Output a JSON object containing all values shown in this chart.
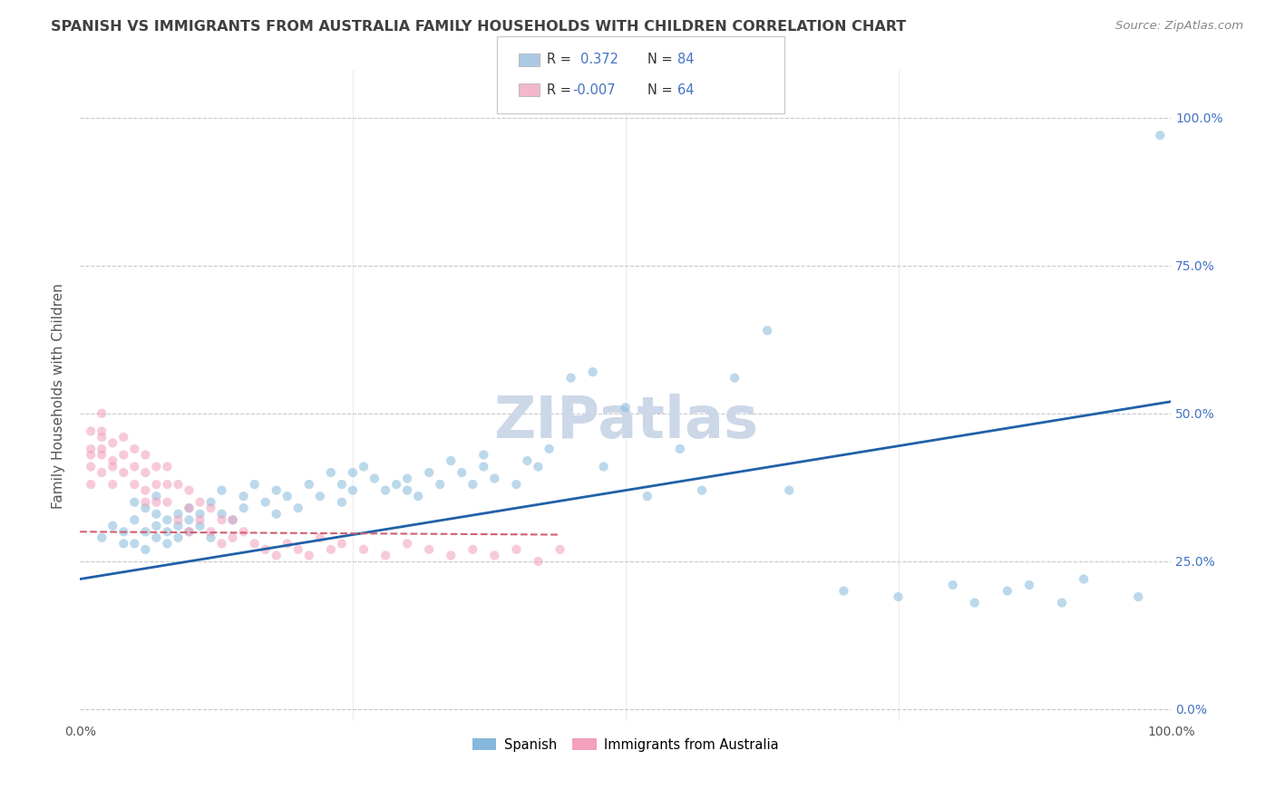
{
  "title": "SPANISH VS IMMIGRANTS FROM AUSTRALIA FAMILY HOUSEHOLDS WITH CHILDREN CORRELATION CHART",
  "source_text": "Source: ZipAtlas.com",
  "ylabel": "Family Households with Children",
  "xlim": [
    0.0,
    1.0
  ],
  "ylim": [
    -0.05,
    1.1
  ],
  "plot_ylim": [
    0.0,
    1.0
  ],
  "xtick_positions": [
    0.0,
    1.0
  ],
  "xtick_labels": [
    "0.0%",
    "100.0%"
  ],
  "ytick_positions": [
    0.0,
    0.25,
    0.5,
    0.75,
    1.0
  ],
  "ytick_labels": [
    "0.0%",
    "25.0%",
    "50.0%",
    "75.0%",
    "100.0%"
  ],
  "watermark": "ZIPatlas",
  "blue_scatter_x": [
    0.02,
    0.03,
    0.04,
    0.04,
    0.05,
    0.05,
    0.05,
    0.06,
    0.06,
    0.06,
    0.07,
    0.07,
    0.07,
    0.07,
    0.08,
    0.08,
    0.08,
    0.09,
    0.09,
    0.09,
    0.1,
    0.1,
    0.1,
    0.11,
    0.11,
    0.12,
    0.12,
    0.13,
    0.13,
    0.14,
    0.15,
    0.15,
    0.16,
    0.17,
    0.18,
    0.18,
    0.19,
    0.2,
    0.21,
    0.22,
    0.23,
    0.24,
    0.24,
    0.25,
    0.25,
    0.26,
    0.27,
    0.28,
    0.29,
    0.3,
    0.3,
    0.31,
    0.32,
    0.33,
    0.34,
    0.35,
    0.36,
    0.37,
    0.37,
    0.38,
    0.4,
    0.41,
    0.42,
    0.43,
    0.45,
    0.47,
    0.48,
    0.5,
    0.52,
    0.55,
    0.57,
    0.6,
    0.63,
    0.65,
    0.7,
    0.75,
    0.8,
    0.82,
    0.85,
    0.87,
    0.9,
    0.92,
    0.97,
    0.99
  ],
  "blue_scatter_y": [
    0.29,
    0.31,
    0.3,
    0.28,
    0.32,
    0.35,
    0.28,
    0.3,
    0.34,
    0.27,
    0.31,
    0.29,
    0.33,
    0.36,
    0.3,
    0.32,
    0.28,
    0.31,
    0.33,
    0.29,
    0.34,
    0.3,
    0.32,
    0.31,
    0.33,
    0.35,
    0.29,
    0.33,
    0.37,
    0.32,
    0.34,
    0.36,
    0.38,
    0.35,
    0.33,
    0.37,
    0.36,
    0.34,
    0.38,
    0.36,
    0.4,
    0.35,
    0.38,
    0.37,
    0.4,
    0.41,
    0.39,
    0.37,
    0.38,
    0.39,
    0.37,
    0.36,
    0.4,
    0.38,
    0.42,
    0.4,
    0.38,
    0.41,
    0.43,
    0.39,
    0.38,
    0.42,
    0.41,
    0.44,
    0.56,
    0.57,
    0.41,
    0.51,
    0.36,
    0.44,
    0.37,
    0.56,
    0.64,
    0.37,
    0.2,
    0.19,
    0.21,
    0.18,
    0.2,
    0.21,
    0.18,
    0.22,
    0.19,
    0.97
  ],
  "pink_scatter_x": [
    0.01,
    0.01,
    0.01,
    0.01,
    0.01,
    0.02,
    0.02,
    0.02,
    0.02,
    0.02,
    0.02,
    0.03,
    0.03,
    0.03,
    0.03,
    0.04,
    0.04,
    0.04,
    0.05,
    0.05,
    0.05,
    0.06,
    0.06,
    0.06,
    0.06,
    0.07,
    0.07,
    0.07,
    0.08,
    0.08,
    0.08,
    0.09,
    0.09,
    0.1,
    0.1,
    0.1,
    0.11,
    0.11,
    0.12,
    0.12,
    0.13,
    0.13,
    0.14,
    0.14,
    0.15,
    0.16,
    0.17,
    0.18,
    0.19,
    0.2,
    0.21,
    0.22,
    0.23,
    0.24,
    0.26,
    0.28,
    0.3,
    0.32,
    0.34,
    0.36,
    0.38,
    0.4,
    0.42,
    0.44
  ],
  "pink_scatter_y": [
    0.44,
    0.41,
    0.47,
    0.38,
    0.43,
    0.46,
    0.43,
    0.4,
    0.47,
    0.44,
    0.5,
    0.42,
    0.45,
    0.38,
    0.41,
    0.43,
    0.4,
    0.46,
    0.38,
    0.41,
    0.44,
    0.37,
    0.4,
    0.43,
    0.35,
    0.38,
    0.41,
    0.35,
    0.38,
    0.41,
    0.35,
    0.38,
    0.32,
    0.37,
    0.34,
    0.3,
    0.35,
    0.32,
    0.34,
    0.3,
    0.32,
    0.28,
    0.32,
    0.29,
    0.3,
    0.28,
    0.27,
    0.26,
    0.28,
    0.27,
    0.26,
    0.29,
    0.27,
    0.28,
    0.27,
    0.26,
    0.28,
    0.27,
    0.26,
    0.27,
    0.26,
    0.27,
    0.25,
    0.27
  ],
  "blue_line_x": [
    0.0,
    1.0
  ],
  "blue_line_y": [
    0.22,
    0.52
  ],
  "pink_line_x": [
    0.0,
    0.44
  ],
  "pink_line_y": [
    0.3,
    0.295
  ],
  "grid_color": "#c8c8c8",
  "blue_color": "#85b8dc",
  "pink_color": "#f2a0bc",
  "blue_line_color": "#2060a8",
  "pink_line_color": "#d06070",
  "title_fontsize": 11.5,
  "axis_label_fontsize": 11,
  "tick_fontsize": 10,
  "right_tick_color": "#4472c4",
  "source_fontsize": 9.5,
  "watermark_color": "#ccd8e8",
  "scatter_size": 55,
  "scatter_alpha": 0.55,
  "legend_box_color_blue": "#adc8e4",
  "legend_box_color_pink": "#f2b8cc",
  "legend_R_color": "#4472c4",
  "legend_text_color": "#333333"
}
